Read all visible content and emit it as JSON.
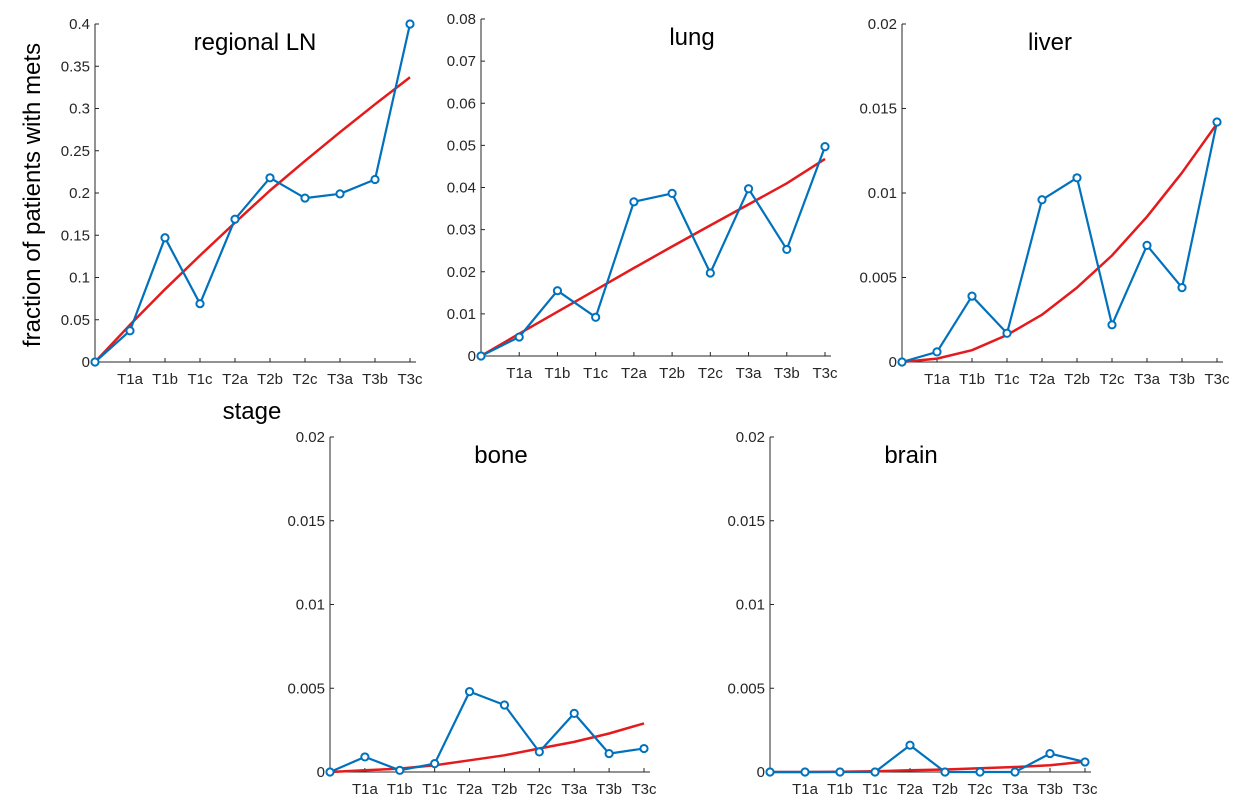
{
  "figure": {
    "ylabel": "fraction of patients with mets",
    "xlabel": "stage"
  },
  "chart_data": [
    {
      "type": "line",
      "title": "regional LN",
      "categories": [
        "T1a",
        "T1b",
        "T1c",
        "T2a",
        "T2b",
        "T2c",
        "T3a",
        "T3b",
        "T3c"
      ],
      "ylim": [
        0,
        0.4
      ],
      "yticks": [
        0,
        0.05,
        0.1,
        0.15,
        0.2,
        0.25,
        0.3,
        0.35,
        0.4
      ],
      "ytick_labels": [
        "0",
        "0.05",
        "0.1",
        "0.15",
        "0.2",
        "0.25",
        "0.3",
        "0.35",
        "0.4"
      ],
      "series": [
        {
          "kind": "observed",
          "color": "#0072BD",
          "x": [
            0,
            1,
            2,
            3,
            4,
            5,
            6,
            7,
            8,
            9
          ],
          "values": [
            0,
            0.037,
            0.147,
            0.069,
            0.169,
            0.218,
            0.194,
            0.199,
            0.216,
            0.4
          ]
        },
        {
          "kind": "fit",
          "color": "#E41A1C",
          "x": [
            0,
            1,
            2,
            3,
            4,
            5,
            6,
            7,
            8,
            9
          ],
          "values": [
            0,
            0.044,
            0.086,
            0.126,
            0.165,
            0.203,
            0.238,
            0.272,
            0.305,
            0.337
          ]
        }
      ]
    },
    {
      "type": "line",
      "title": "lung",
      "categories": [
        "T1a",
        "T1b",
        "T1c",
        "T2a",
        "T2b",
        "T2c",
        "T3a",
        "T3b",
        "T3c"
      ],
      "ylim": [
        0,
        0.08
      ],
      "yticks": [
        0,
        0.01,
        0.02,
        0.03,
        0.04,
        0.05,
        0.06,
        0.07,
        0.08
      ],
      "ytick_labels": [
        "0",
        "0.01",
        "0.02",
        "0.03",
        "0.04",
        "0.05",
        "0.06",
        "0.07",
        "0.08"
      ],
      "series": [
        {
          "kind": "observed",
          "color": "#0072BD",
          "x": [
            0,
            1,
            2,
            3,
            4,
            5,
            6,
            7,
            8,
            9
          ],
          "values": [
            0,
            0.0045,
            0.0155,
            0.0092,
            0.0366,
            0.0386,
            0.0197,
            0.0397,
            0.0253,
            0.0497
          ]
        },
        {
          "kind": "fit",
          "color": "#E41A1C",
          "x": [
            0,
            1,
            2,
            3,
            4,
            5,
            6,
            7,
            8,
            9
          ],
          "values": [
            0,
            0.0053,
            0.0105,
            0.0157,
            0.0209,
            0.026,
            0.031,
            0.036,
            0.041,
            0.0468
          ]
        }
      ]
    },
    {
      "type": "line",
      "title": "liver",
      "categories": [
        "T1a",
        "T1b",
        "T1c",
        "T2a",
        "T2b",
        "T2c",
        "T3a",
        "T3b",
        "T3c"
      ],
      "ylim": [
        0,
        0.02
      ],
      "yticks": [
        0,
        0.005,
        0.01,
        0.015,
        0.02
      ],
      "ytick_labels": [
        "0",
        "0.005",
        "0.01",
        "0.015",
        "0.02"
      ],
      "series": [
        {
          "kind": "observed",
          "color": "#0072BD",
          "x": [
            0,
            1,
            2,
            3,
            4,
            5,
            6,
            7,
            8,
            9
          ],
          "values": [
            0,
            0.0006,
            0.0039,
            0.0017,
            0.0096,
            0.0109,
            0.0022,
            0.0069,
            0.0044,
            0.0142
          ]
        },
        {
          "kind": "fit",
          "color": "#E41A1C",
          "x": [
            0,
            1,
            2,
            3,
            4,
            5,
            6,
            7,
            8,
            9
          ],
          "values": [
            0,
            0.0002,
            0.0007,
            0.0016,
            0.0028,
            0.0044,
            0.0063,
            0.0086,
            0.0112,
            0.0141
          ]
        }
      ]
    },
    {
      "type": "line",
      "title": "bone",
      "categories": [
        "T1a",
        "T1b",
        "T1c",
        "T2a",
        "T2b",
        "T2c",
        "T3a",
        "T3b",
        "T3c"
      ],
      "ylim": [
        0,
        0.02
      ],
      "yticks": [
        0,
        0.005,
        0.01,
        0.015,
        0.02
      ],
      "ytick_labels": [
        "0",
        "0.005",
        "0.01",
        "0.015",
        "0.02"
      ],
      "series": [
        {
          "kind": "observed",
          "color": "#0072BD",
          "x": [
            0,
            1,
            2,
            3,
            4,
            5,
            6,
            7,
            8,
            9
          ],
          "values": [
            0,
            0.0009,
            0.0001,
            0.0005,
            0.0048,
            0.004,
            0.0012,
            0.0035,
            0.0011,
            0.0014
          ]
        },
        {
          "kind": "fit",
          "color": "#E41A1C",
          "x": [
            0,
            1,
            2,
            3,
            4,
            5,
            6,
            7,
            8,
            9
          ],
          "values": [
            0,
            0.0001,
            0.0002,
            0.0004,
            0.0007,
            0.001,
            0.0014,
            0.0018,
            0.0023,
            0.0029
          ]
        }
      ]
    },
    {
      "type": "line",
      "title": "brain",
      "categories": [
        "T1a",
        "T1b",
        "T1c",
        "T2a",
        "T2b",
        "T2c",
        "T3a",
        "T3b",
        "T3c"
      ],
      "ylim": [
        0,
        0.02
      ],
      "yticks": [
        0,
        0.005,
        0.01,
        0.015,
        0.02
      ],
      "ytick_labels": [
        "0",
        "0.005",
        "0.01",
        "0.015",
        "0.02"
      ],
      "series": [
        {
          "kind": "observed",
          "color": "#0072BD",
          "x": [
            0,
            1,
            2,
            3,
            4,
            5,
            6,
            7,
            8,
            9
          ],
          "values": [
            0,
            0,
            0,
            0,
            0.0016,
            0,
            0,
            0,
            0.0011,
            0.0006
          ]
        },
        {
          "kind": "fit",
          "color": "#E41A1C",
          "x": [
            0,
            1,
            2,
            3,
            4,
            5,
            6,
            7,
            8,
            9
          ],
          "values": [
            0,
            0,
            2e-05,
            5e-05,
            0.0001,
            0.00015,
            0.00022,
            0.0003,
            0.0004,
            0.00062
          ]
        }
      ]
    }
  ]
}
